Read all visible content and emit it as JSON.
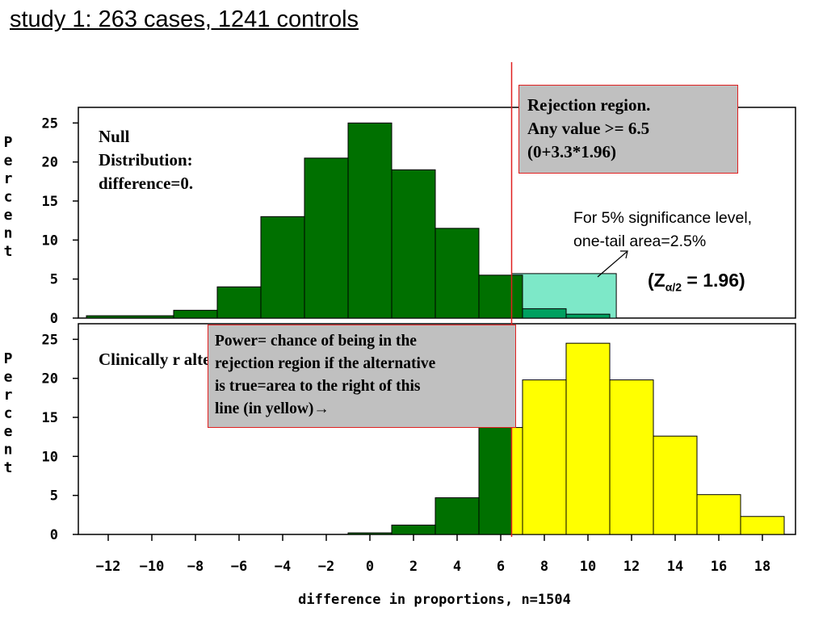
{
  "slide": {
    "title": "study 1: 263 cases, 1241 controls"
  },
  "annotations": {
    "null_label": "Null\nDistribution:\ndifference=0.",
    "alt_label": "Clinically r\nalternative:\ndifference=",
    "rejection_callout": "Rejection region.\nAny value >= 6.5\n(0+3.3*1.96)",
    "sig_note": "For 5% significance level,\none-tail area=2.5%",
    "z_note": {
      "open": "(Z",
      "sub": "α/2",
      "close": " = 1.96)"
    },
    "power_callout": "Power= chance of being in the\nrejection region if the alternative\nis true=area to the right of this\nline (in yellow)→"
  },
  "colors": {
    "bar_green": "#007000",
    "bar_yellow": "#ffff00",
    "rejection_fill": "#7de8c8",
    "bar_teal_dark": "#00a060",
    "critical_line": "#e02020",
    "callout_bg": "#c0c0c0"
  },
  "chart_data": {
    "type": "bar",
    "xlabel": "difference in proportions, n=1504",
    "ylabel": "Percent",
    "x_ticks": [
      -12,
      -10,
      -8,
      -6,
      -4,
      -2,
      0,
      2,
      4,
      6,
      8,
      10,
      12,
      14,
      16,
      18
    ],
    "y_ticks": [
      0,
      5,
      10,
      15,
      20,
      25
    ],
    "critical_value": 6.5,
    "panels": [
      {
        "name": "null",
        "ylim": [
          0,
          27
        ],
        "bins": [
          {
            "from": -13,
            "to": -9,
            "value": 0.3,
            "color": "green"
          },
          {
            "from": -9,
            "to": -7,
            "value": 1,
            "color": "green"
          },
          {
            "from": -7,
            "to": -5,
            "value": 4,
            "color": "green"
          },
          {
            "from": -5,
            "to": -3,
            "value": 13,
            "color": "green"
          },
          {
            "from": -3,
            "to": -1,
            "value": 20.5,
            "color": "green"
          },
          {
            "from": -1,
            "to": 1,
            "value": 25,
            "color": "green"
          },
          {
            "from": 1,
            "to": 3,
            "value": 19,
            "color": "green"
          },
          {
            "from": 3,
            "to": 5,
            "value": 11.5,
            "color": "green"
          },
          {
            "from": 5,
            "to": 7,
            "value": 5.5,
            "color": "green"
          },
          {
            "from": 7,
            "to": 9,
            "value": 1.2,
            "color": "teal"
          },
          {
            "from": 9,
            "to": 11,
            "value": 0.5,
            "color": "teal"
          }
        ],
        "rejection_region": {
          "from": 6.5,
          "to": 11.3,
          "value": 5.7
        }
      },
      {
        "name": "alternative",
        "ylim": [
          0,
          27
        ],
        "bins": [
          {
            "from": -1,
            "to": 1,
            "value": 0.2,
            "color": "green"
          },
          {
            "from": 1,
            "to": 3,
            "value": 1.2,
            "color": "green"
          },
          {
            "from": 3,
            "to": 5,
            "value": 4.7,
            "color": "green"
          },
          {
            "from": 5,
            "to": 6.5,
            "value": 13.7,
            "color": "green"
          },
          {
            "from": 6.5,
            "to": 7,
            "value": 13.7,
            "color": "yellow"
          },
          {
            "from": 7,
            "to": 9,
            "value": 19.8,
            "color": "yellow"
          },
          {
            "from": 9,
            "to": 11,
            "value": 24.5,
            "color": "yellow"
          },
          {
            "from": 11,
            "to": 13,
            "value": 19.8,
            "color": "yellow"
          },
          {
            "from": 13,
            "to": 15,
            "value": 12.6,
            "color": "yellow"
          },
          {
            "from": 15,
            "to": 17,
            "value": 5.1,
            "color": "yellow"
          },
          {
            "from": 17,
            "to": 19,
            "value": 2.3,
            "color": "yellow"
          }
        ]
      }
    ]
  }
}
